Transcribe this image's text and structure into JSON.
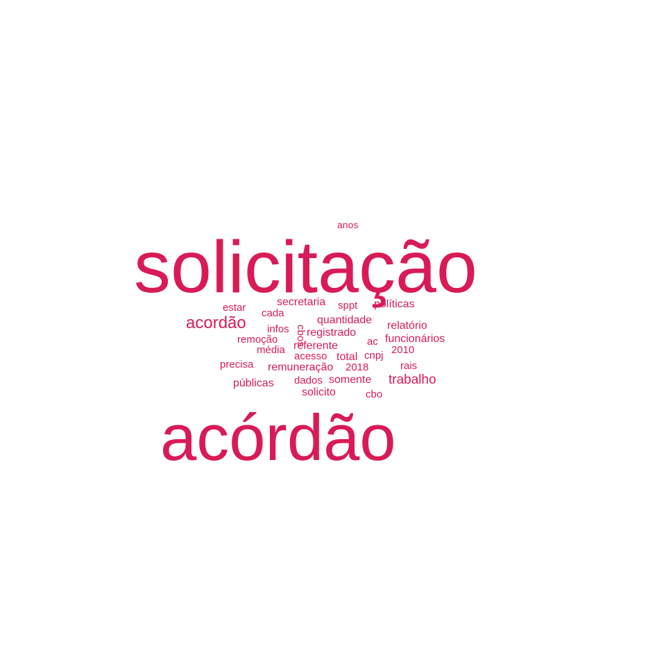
{
  "color": "#d81b56",
  "words": [
    {
      "text": "solicitação",
      "weight": 100
    },
    {
      "text": "acórdão",
      "weight": 92
    },
    {
      "text": "acordão",
      "weight": 24
    },
    {
      "text": "trabalho",
      "weight": 19
    },
    {
      "text": "secretaria",
      "weight": 16
    },
    {
      "text": "políticas",
      "weight": 16
    },
    {
      "text": "sppt",
      "weight": 15
    },
    {
      "text": "estar",
      "weight": 15
    },
    {
      "text": "cada",
      "weight": 15
    },
    {
      "text": "quantidade",
      "weight": 16
    },
    {
      "text": "relatório",
      "weight": 16
    },
    {
      "text": "infos",
      "weight": 15
    },
    {
      "text": "cbos",
      "weight": 15
    },
    {
      "text": "registrado",
      "weight": 16
    },
    {
      "text": "remoção",
      "weight": 15
    },
    {
      "text": "ac",
      "weight": 15
    },
    {
      "text": "funcionários",
      "weight": 16
    },
    {
      "text": "referente",
      "weight": 16
    },
    {
      "text": "média",
      "weight": 15
    },
    {
      "text": "acesso",
      "weight": 15
    },
    {
      "text": "total",
      "weight": 16
    },
    {
      "text": "cnpj",
      "weight": 15
    },
    {
      "text": "2010",
      "weight": 15
    },
    {
      "text": "precisa",
      "weight": 15
    },
    {
      "text": "remuneração",
      "weight": 16
    },
    {
      "text": "2018",
      "weight": 15
    },
    {
      "text": "rais",
      "weight": 15
    },
    {
      "text": "públicas",
      "weight": 16
    },
    {
      "text": "dados",
      "weight": 15
    },
    {
      "text": "somente",
      "weight": 16
    },
    {
      "text": "solicito",
      "weight": 16
    },
    {
      "text": "cbo",
      "weight": 15
    },
    {
      "text": "anos",
      "weight": 14
    }
  ]
}
